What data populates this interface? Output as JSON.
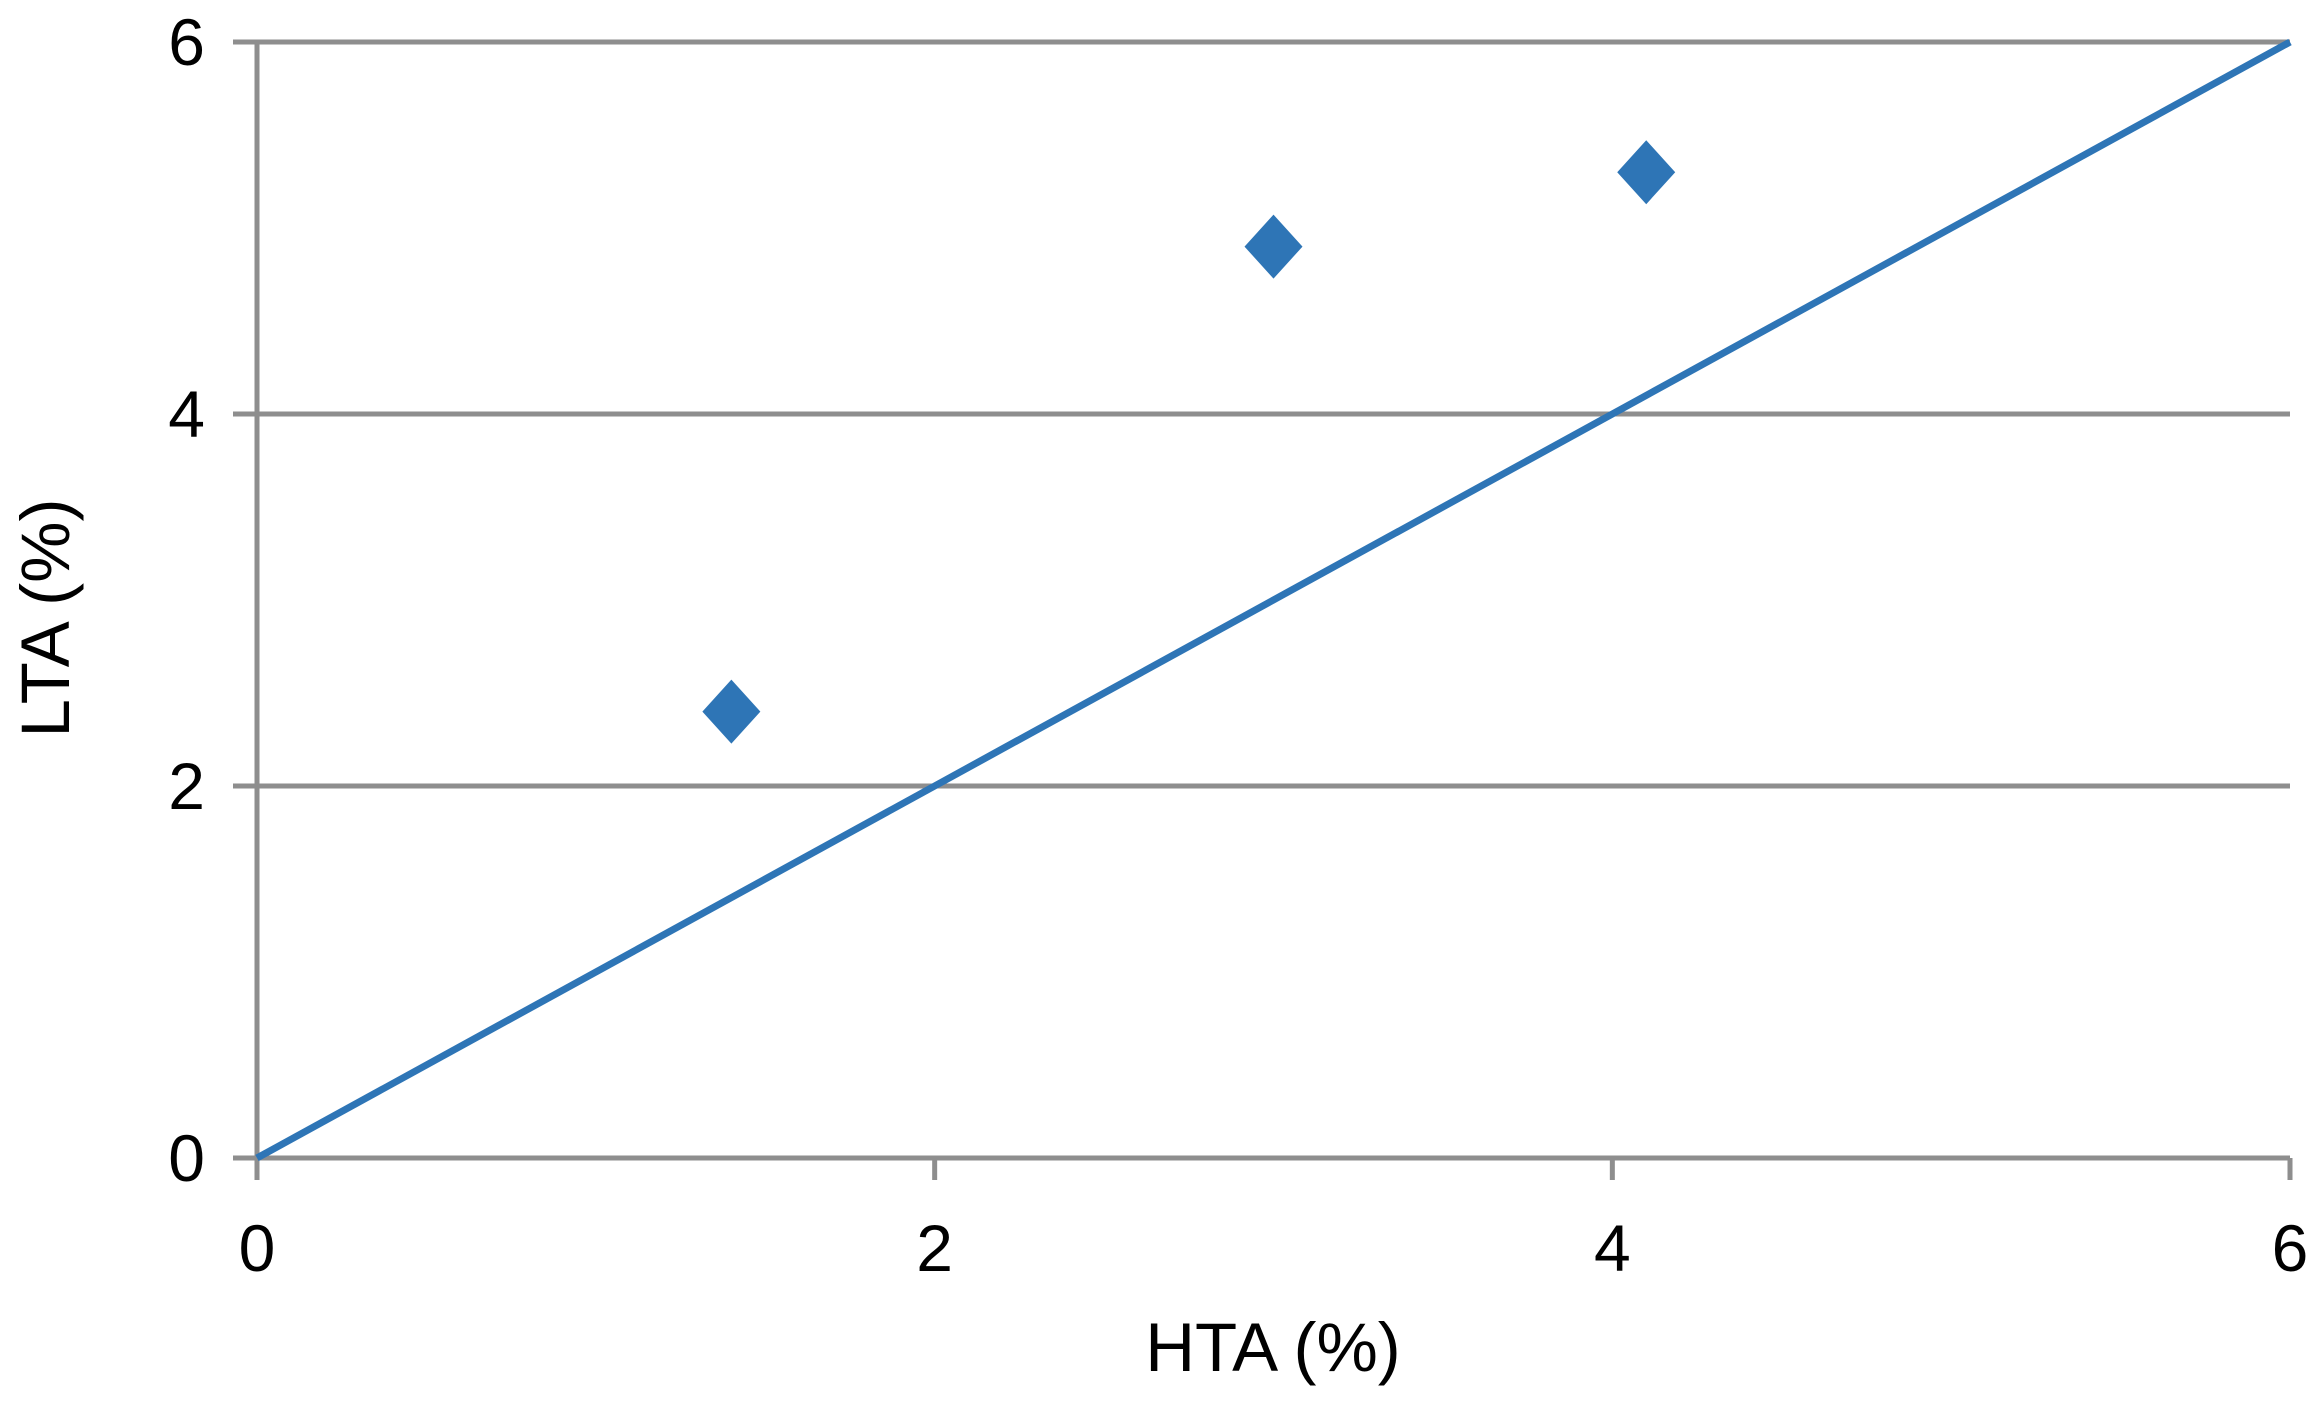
{
  "chart_data": {
    "type": "scatter",
    "title": "",
    "xlabel": "HTA (%)",
    "ylabel": "LTA (%)",
    "xlim": [
      0,
      6
    ],
    "ylim": [
      0,
      6
    ],
    "xticks": [
      0,
      2,
      4,
      6
    ],
    "yticks": [
      0,
      2,
      4,
      6
    ],
    "x_tick_labels": [
      "0",
      "2",
      "4",
      "6"
    ],
    "y_tick_labels": [
      "0",
      "2",
      "4",
      "6"
    ],
    "grid": "horizontal-gridlines-on",
    "legend": "none",
    "series": [
      {
        "name": "scatter-points",
        "type": "scatter",
        "marker": "diamond",
        "color": "#2E75B6",
        "points": [
          {
            "x": 1.4,
            "y": 2.4
          },
          {
            "x": 3.0,
            "y": 4.9
          },
          {
            "x": 4.1,
            "y": 5.3
          }
        ]
      },
      {
        "name": "identity-line",
        "type": "line",
        "color": "#2E75B6",
        "points": [
          {
            "x": 0,
            "y": 0
          },
          {
            "x": 6,
            "y": 6
          }
        ]
      }
    ],
    "colors": {
      "marker": "#2E75B6",
      "line": "#2E75B6",
      "grid": "#8E8E8E",
      "axis": "#8E8E8E",
      "text": "#000000",
      "background": "#FFFFFF"
    }
  }
}
